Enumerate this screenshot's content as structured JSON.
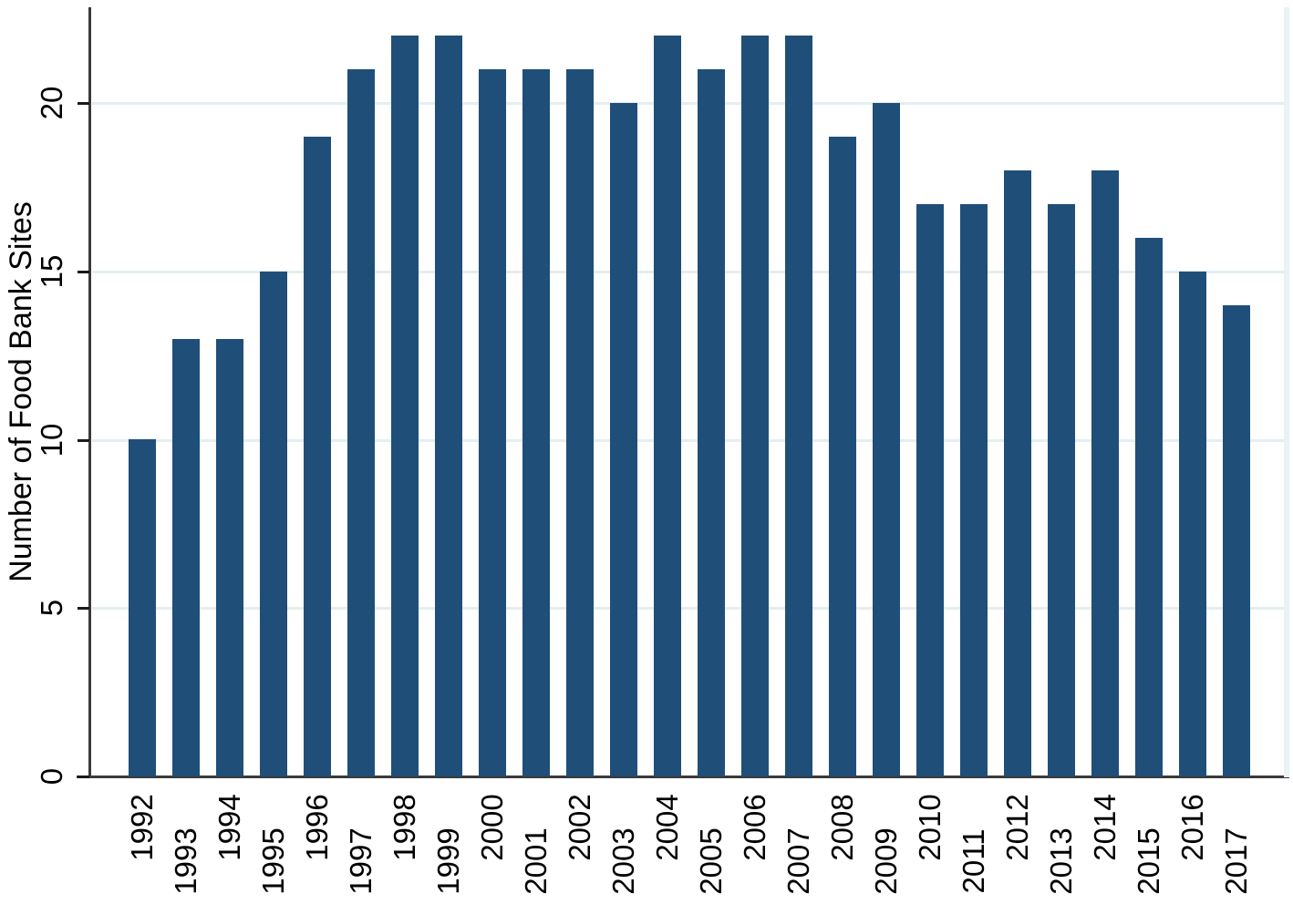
{
  "chart_data": {
    "type": "bar",
    "title": "",
    "xlabel": "",
    "ylabel": "Number of Food Bank Sites",
    "categories": [
      "1992",
      "1993",
      "1994",
      "1995",
      "1996",
      "1997",
      "1998",
      "1999",
      "2000",
      "2001",
      "2002",
      "2003",
      "2004",
      "2005",
      "2006",
      "2007",
      "2008",
      "2009",
      "2010",
      "2011",
      "2012",
      "2013",
      "2014",
      "2015",
      "2016",
      "2017"
    ],
    "values": [
      10,
      13,
      13,
      15,
      19,
      21,
      22,
      22,
      21,
      21,
      21,
      20,
      22,
      21,
      22,
      22,
      19,
      20,
      17,
      17,
      18,
      17,
      18,
      16,
      15,
      14
    ],
    "yticks": [
      0,
      5,
      10,
      15,
      20
    ],
    "ylim": [
      0,
      22.85
    ],
    "grid": "horizontal gridlines at y ticks, very light blue",
    "legend": "none",
    "x_tick_label_rotation_deg": 90,
    "y_tick_label_rotation_deg": 90,
    "colors": {
      "bar": "#1f4e79",
      "axis": "#3a3a3a",
      "tick": "#1a1a1a",
      "gridline": "#e3eef1",
      "plot_right_border": "#e9f2f4",
      "text": "#000000",
      "background": "#ffffff"
    }
  }
}
